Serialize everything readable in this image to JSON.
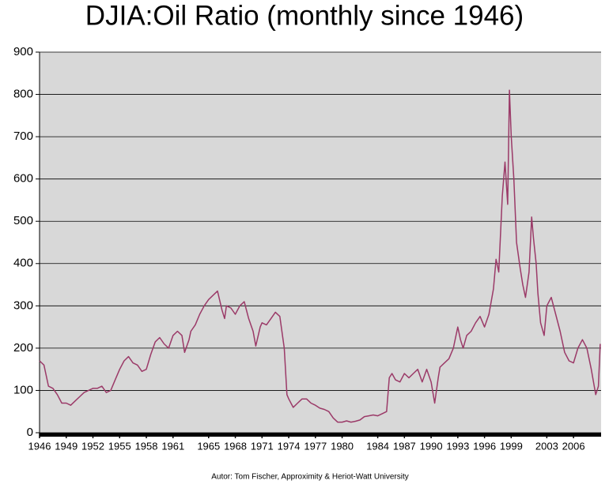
{
  "chart_data": {
    "type": "line",
    "title": "DJIA:Oil Ratio (monthly since 1946)",
    "footnote": "Autor: Tom Fischer, Approximity & Heriot-Watt University",
    "xlim": [
      1946,
      2009.1
    ],
    "xticks": [
      1946,
      1949,
      1952,
      1955,
      1958,
      1961,
      1965,
      1968,
      1971,
      1974,
      1977,
      1980,
      1984,
      1987,
      1990,
      1993,
      1996,
      1999,
      2003,
      2006
    ],
    "ylim": [
      0,
      900
    ],
    "yticks": [
      0,
      100,
      200,
      300,
      400,
      500,
      600,
      700,
      800,
      900
    ],
    "grid": true,
    "background": "#d8d8d8",
    "series": [
      {
        "name": "DJIA:Oil",
        "color": "#9b3a68",
        "x": [
          1946.0,
          1946.5,
          1947.0,
          1947.5,
          1948.0,
          1948.5,
          1949.0,
          1949.5,
          1950.0,
          1950.5,
          1951.0,
          1951.5,
          1952.0,
          1952.5,
          1953.0,
          1953.5,
          1954.0,
          1954.5,
          1955.0,
          1955.5,
          1956.0,
          1956.5,
          1957.0,
          1957.5,
          1958.0,
          1958.5,
          1959.0,
          1959.5,
          1960.0,
          1960.5,
          1961.0,
          1961.5,
          1962.0,
          1962.3,
          1962.8,
          1963.0,
          1963.5,
          1964.0,
          1964.5,
          1965.0,
          1965.5,
          1966.0,
          1966.5,
          1966.8,
          1967.0,
          1967.5,
          1968.0,
          1968.5,
          1969.0,
          1969.5,
          1970.0,
          1970.3,
          1970.8,
          1971.0,
          1971.5,
          1972.0,
          1972.5,
          1973.0,
          1973.5,
          1973.8,
          1974.0,
          1974.5,
          1975.0,
          1975.5,
          1976.0,
          1976.5,
          1977.0,
          1977.5,
          1978.0,
          1978.5,
          1979.0,
          1979.5,
          1980.0,
          1980.5,
          1981.0,
          1981.5,
          1982.0,
          1982.5,
          1983.0,
          1983.5,
          1984.0,
          1984.5,
          1985.0,
          1985.3,
          1985.6,
          1986.0,
          1986.5,
          1987.0,
          1987.5,
          1988.0,
          1988.5,
          1989.0,
          1989.5,
          1990.0,
          1990.4,
          1990.8,
          1991.0,
          1991.5,
          1992.0,
          1992.5,
          1993.0,
          1993.3,
          1993.6,
          1994.0,
          1994.5,
          1995.0,
          1995.5,
          1996.0,
          1996.5,
          1997.0,
          1997.3,
          1997.6,
          1998.0,
          1998.3,
          1998.6,
          1998.8,
          1999.0,
          1999.3,
          1999.6,
          2000.0,
          2000.3,
          2000.6,
          2001.0,
          2001.3,
          2001.5,
          2001.8,
          2002.0,
          2002.3,
          2002.7,
          2003.0,
          2003.5,
          2004.0,
          2004.5,
          2005.0,
          2005.5,
          2006.0,
          2006.5,
          2007.0,
          2007.5,
          2008.0,
          2008.5,
          2008.8,
          2009.0
        ],
        "values": [
          170,
          160,
          110,
          105,
          90,
          70,
          70,
          65,
          75,
          85,
          95,
          100,
          105,
          105,
          110,
          95,
          100,
          125,
          150,
          170,
          180,
          165,
          160,
          145,
          150,
          185,
          215,
          225,
          210,
          200,
          230,
          240,
          230,
          190,
          220,
          240,
          255,
          280,
          300,
          315,
          325,
          335,
          290,
          270,
          300,
          295,
          280,
          300,
          310,
          270,
          240,
          205,
          250,
          260,
          255,
          270,
          285,
          275,
          200,
          90,
          80,
          60,
          70,
          80,
          80,
          70,
          65,
          58,
          55,
          50,
          35,
          25,
          25,
          28,
          25,
          27,
          30,
          38,
          40,
          42,
          40,
          45,
          50,
          130,
          140,
          125,
          120,
          140,
          130,
          140,
          150,
          120,
          150,
          120,
          70,
          130,
          155,
          165,
          175,
          200,
          250,
          220,
          200,
          230,
          240,
          260,
          275,
          250,
          280,
          340,
          410,
          380,
          560,
          640,
          540,
          810,
          700,
          600,
          450,
          390,
          350,
          320,
          380,
          510,
          460,
          400,
          330,
          260,
          230,
          300,
          320,
          280,
          240,
          190,
          170,
          165,
          200,
          220,
          200,
          150,
          90,
          110,
          210
        ]
      }
    ]
  }
}
